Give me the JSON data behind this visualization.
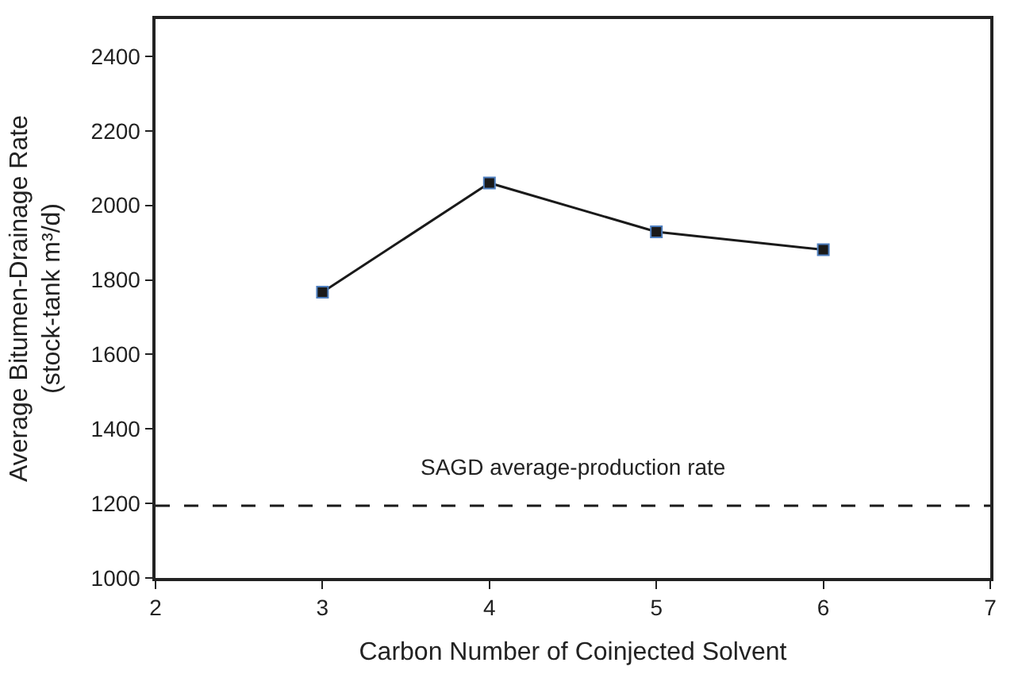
{
  "chart_data": {
    "type": "line",
    "xlabel": "Carbon Number of Coinjected Solvent",
    "ylabel": "Average Bitumen-Drainage Rate\n(stock-tank m³/d)",
    "x": [
      3,
      4,
      5,
      6
    ],
    "series": [
      {
        "color": "#1a1a1a",
        "values": [
          1767,
          2060,
          1929,
          1881
        ]
      }
    ],
    "xlim": [
      2,
      7
    ],
    "xticks": [
      2,
      3,
      4,
      5,
      6,
      7
    ],
    "ylim": [
      1000,
      2500
    ],
    "yticks": [
      1000,
      1200,
      1400,
      1600,
      1800,
      2000,
      2200,
      2400
    ],
    "ref_lines": [
      {
        "axis": "y",
        "value": 1194,
        "label": "SAGD average-production rate",
        "color": "#1a1a1a",
        "line_style": "dashed"
      }
    ],
    "marker": "square",
    "line_style": "solid",
    "legend": false
  }
}
